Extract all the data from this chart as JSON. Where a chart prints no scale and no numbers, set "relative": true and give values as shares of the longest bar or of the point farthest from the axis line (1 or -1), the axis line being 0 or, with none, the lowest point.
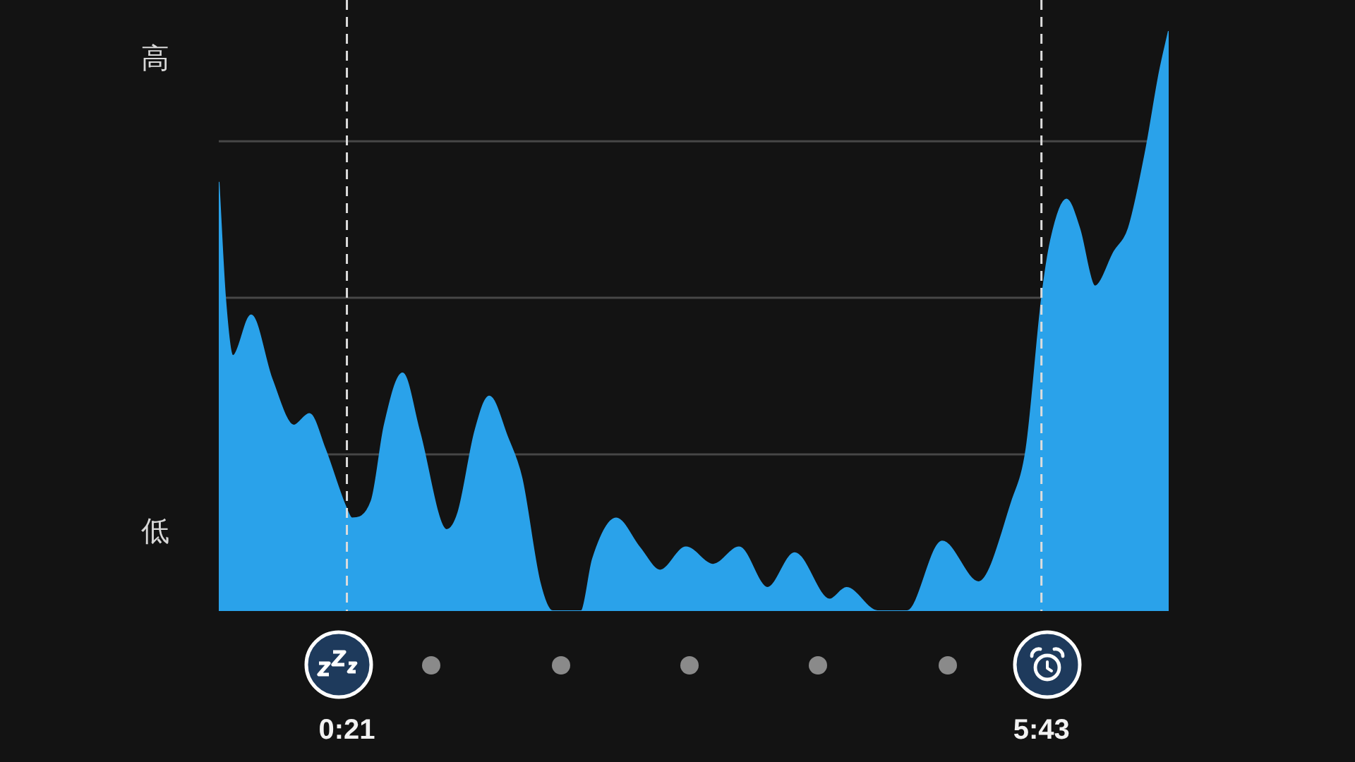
{
  "chart_data": {
    "type": "area",
    "relative": true,
    "x": [
      -0.64,
      -0.59,
      -0.53,
      -0.39,
      -0.23,
      -0.06,
      0.06,
      0.18,
      0.34,
      0.39,
      0.54,
      0.64,
      0.78,
      0.91,
      1.12,
      1.21,
      1.34,
      1.45,
      1.59,
      1.7,
      1.84,
      1.94,
      2.16,
      2.25,
      2.43,
      2.61,
      2.77,
      2.97,
      3.18,
      3.38,
      3.6,
      3.81,
      4.08,
      4.21,
      4.45,
      4.68,
      4.95,
      5.23,
      5.49,
      5.6,
      5.72,
      5.79,
      5.91,
      6.01,
      6.13,
      6.28,
      6.39,
      6.52,
      6.63,
      6.7
    ],
    "values": [
      0.74,
      0.54,
      0.44,
      0.51,
      0.4,
      0.32,
      0.34,
      0.28,
      0.18,
      0.16,
      0.19,
      0.32,
      0.41,
      0.31,
      0.14,
      0.17,
      0.31,
      0.37,
      0.3,
      0.23,
      0.05,
      0,
      0,
      0.09,
      0.16,
      0.11,
      0.07,
      0.11,
      0.08,
      0.11,
      0.04,
      0.1,
      0.02,
      0.04,
      0,
      0,
      0.12,
      0.05,
      0.19,
      0.28,
      0.54,
      0.64,
      0.71,
      0.66,
      0.56,
      0.62,
      0.66,
      0.79,
      0.93,
      1
    ],
    "color": "#2aa2ea",
    "xlim": [
      -0.64,
      6.7
    ],
    "xticks": [
      {
        "value": 0.35,
        "label": "0:21"
      },
      {
        "value": 5.7167,
        "label": "5:43"
      }
    ],
    "ref_lines": [
      {
        "axis": "y",
        "value": 0.27,
        "color": "#474747",
        "line_style": "solid"
      },
      {
        "axis": "y",
        "value": 0.54,
        "color": "#474747",
        "line_style": "solid"
      },
      {
        "axis": "y",
        "value": 0.81,
        "color": "#474747",
        "line_style": "solid"
      },
      {
        "axis": "x",
        "value": 0.35,
        "color": "#dcdcdc",
        "line_style": "dashed"
      },
      {
        "axis": "x",
        "value": 5.7167,
        "color": "#dcdcdc",
        "line_style": "dashed"
      }
    ],
    "annotations": [
      "高",
      "低"
    ]
  }
}
